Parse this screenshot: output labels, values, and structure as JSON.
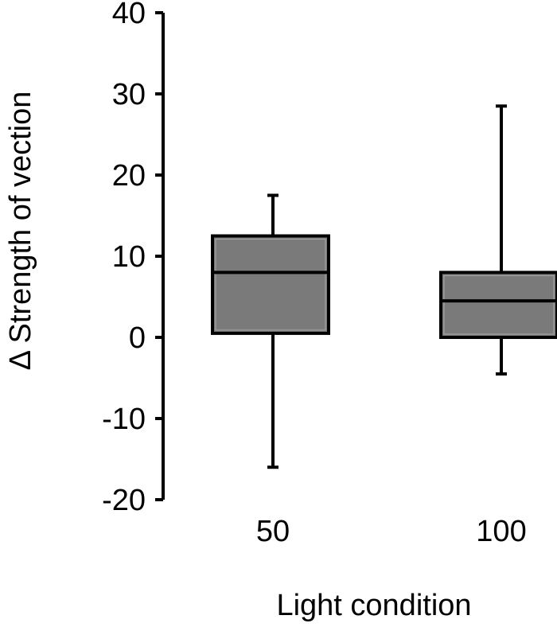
{
  "chart_data": {
    "type": "box",
    "title": "",
    "xlabel": "Light condition",
    "ylabel": "Δ Strength of vection",
    "ylim": [
      -20,
      40
    ],
    "yticks": [
      -20,
      -10,
      0,
      10,
      20,
      30,
      40
    ],
    "categories": [
      "50",
      "100"
    ],
    "boxes": [
      {
        "category": "50",
        "min": -16,
        "q1": 0.5,
        "median": 8,
        "q3": 12.5,
        "max": 17.5
      },
      {
        "category": "100",
        "min": -4.5,
        "q1": 0,
        "median": 4.5,
        "q3": 8,
        "max": 28.5
      }
    ],
    "grid": false,
    "legend": "none",
    "colors": {
      "box_fill": "#7a7a7a",
      "stroke": "#000000"
    }
  }
}
